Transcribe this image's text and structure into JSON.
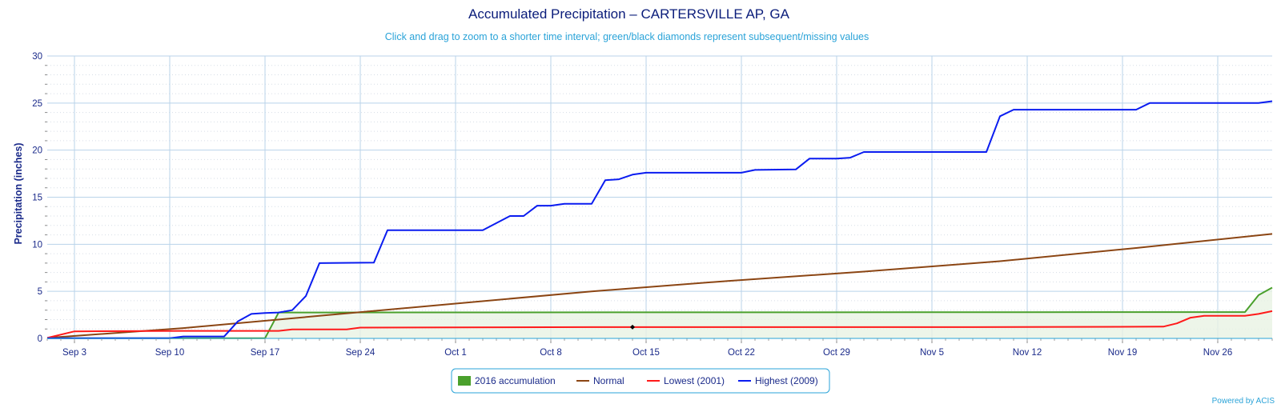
{
  "chart_data": {
    "type": "line",
    "title": "Accumulated Precipitation – CARTERSVILLE AP, GA",
    "subtitle": "Click and drag to zoom to a shorter time interval; green/black diamonds represent subsequent/missing values",
    "ylabel": "Precipitation (inches)",
    "xlabel": "",
    "ylim": [
      0,
      30
    ],
    "yticks": [
      0,
      5,
      10,
      15,
      20,
      25,
      30
    ],
    "xlim": [
      0,
      90
    ],
    "xticks": [
      {
        "x": 2,
        "label": "Sep 3"
      },
      {
        "x": 9,
        "label": "Sep 10"
      },
      {
        "x": 16,
        "label": "Sep 17"
      },
      {
        "x": 23,
        "label": "Sep 24"
      },
      {
        "x": 30,
        "label": "Oct 1"
      },
      {
        "x": 37,
        "label": "Oct 8"
      },
      {
        "x": 44,
        "label": "Oct 15"
      },
      {
        "x": 51,
        "label": "Oct 22"
      },
      {
        "x": 58,
        "label": "Oct 29"
      },
      {
        "x": 65,
        "label": "Nov 5"
      },
      {
        "x": 72,
        "label": "Nov 12"
      },
      {
        "x": 79,
        "label": "Nov 19"
      },
      {
        "x": 86,
        "label": "Nov 26"
      }
    ],
    "grid": true,
    "legend_position": "bottom-center",
    "series": [
      {
        "name": "2016 accumulation",
        "color": "#4aa02c",
        "area": true,
        "points": [
          [
            0,
            0.02
          ],
          [
            16,
            0.02
          ],
          [
            17,
            2.75
          ],
          [
            88,
            2.8
          ],
          [
            89,
            4.6
          ],
          [
            90,
            5.4
          ]
        ]
      },
      {
        "name": "Normal",
        "color": "#8b4513",
        "points": [
          [
            0,
            0.05
          ],
          [
            10,
            1.1
          ],
          [
            20,
            2.4
          ],
          [
            30,
            3.7
          ],
          [
            40,
            5.0
          ],
          [
            50,
            6.1
          ],
          [
            60,
            7.1
          ],
          [
            70,
            8.2
          ],
          [
            80,
            9.6
          ],
          [
            90,
            11.1
          ]
        ]
      },
      {
        "name": "Lowest (2001)",
        "color": "#ff1a1a",
        "points": [
          [
            0,
            0.05
          ],
          [
            2,
            0.75
          ],
          [
            10,
            0.8
          ],
          [
            17,
            0.8
          ],
          [
            18,
            0.95
          ],
          [
            22,
            0.95
          ],
          [
            23,
            1.15
          ],
          [
            40,
            1.2
          ],
          [
            68,
            1.2
          ],
          [
            82,
            1.25
          ],
          [
            83,
            1.6
          ],
          [
            84,
            2.2
          ],
          [
            85,
            2.4
          ],
          [
            88,
            2.4
          ],
          [
            89,
            2.6
          ],
          [
            90,
            2.9
          ]
        ]
      },
      {
        "name": "Highest (2009)",
        "color": "#0a1cf0",
        "points": [
          [
            0,
            0.02
          ],
          [
            9,
            0.02
          ],
          [
            10,
            0.2
          ],
          [
            13,
            0.2
          ],
          [
            14,
            1.8
          ],
          [
            15,
            2.6
          ],
          [
            16,
            2.7
          ],
          [
            17,
            2.75
          ],
          [
            18,
            3.0
          ],
          [
            19,
            4.5
          ],
          [
            20,
            8.0
          ],
          [
            24,
            8.05
          ],
          [
            25,
            11.5
          ],
          [
            32,
            11.5
          ],
          [
            34,
            13.0
          ],
          [
            35,
            13.0
          ],
          [
            36,
            14.1
          ],
          [
            37,
            14.1
          ],
          [
            38,
            14.3
          ],
          [
            40,
            14.3
          ],
          [
            41,
            16.8
          ],
          [
            42,
            16.9
          ],
          [
            43,
            17.4
          ],
          [
            44,
            17.6
          ],
          [
            51,
            17.6
          ],
          [
            52,
            17.9
          ],
          [
            55,
            17.95
          ],
          [
            56,
            19.1
          ],
          [
            58,
            19.1
          ],
          [
            59,
            19.2
          ],
          [
            60,
            19.8
          ],
          [
            69,
            19.8
          ],
          [
            70,
            23.6
          ],
          [
            71,
            24.3
          ],
          [
            80,
            24.3
          ],
          [
            81,
            25.0
          ],
          [
            89,
            25.0
          ],
          [
            90,
            25.2
          ]
        ]
      }
    ],
    "markers": [
      {
        "type": "missing-diamond",
        "color": "#000000",
        "x": 43,
        "y": 1.2
      }
    ]
  },
  "legend": {
    "items": [
      {
        "label": "2016 accumulation",
        "color": "#4aa02c",
        "symbol": "box"
      },
      {
        "label": "Normal",
        "color": "#8b4513",
        "symbol": "line"
      },
      {
        "label": "Lowest (2001)",
        "color": "#ff1a1a",
        "symbol": "line"
      },
      {
        "label": "Highest (2009)",
        "color": "#0a1cf0",
        "symbol": "line"
      }
    ]
  },
  "credit": "Powered by ACIS"
}
